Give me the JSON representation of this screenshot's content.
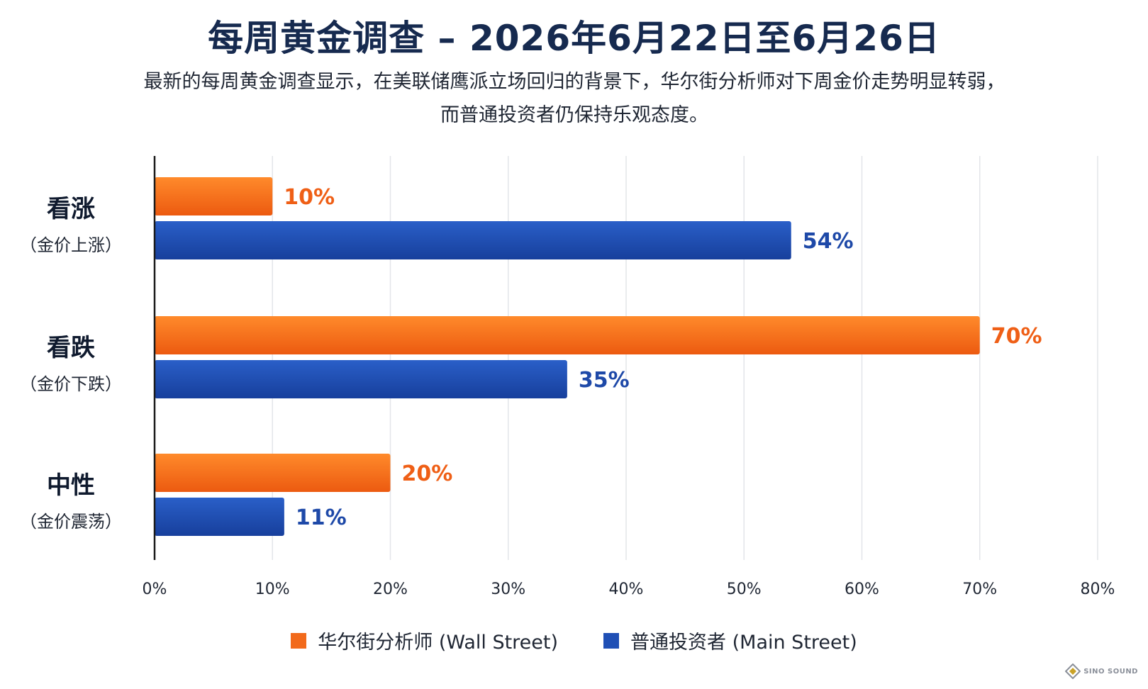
{
  "title": "每周黄金调查 – 2026年6月22日至6月26日",
  "subtitle_line1": "最新的每周黄金调查显示，在美联储鹰派立场回归的背景下，华尔街分析师对下周金价走势明显转弱，",
  "subtitle_line2": "而普通投资者仍保持乐观态度。",
  "colors": {
    "wall_street": "#f26a1b",
    "main_street": "#1f4fb5",
    "wall_street_label": "#ef5f16",
    "main_street_label": "#1e49a8"
  },
  "chart_data": {
    "type": "bar",
    "orientation": "horizontal",
    "categories": [
      {
        "label": "看涨",
        "sub": "（金价上涨）"
      },
      {
        "label": "看跌",
        "sub": "（金价下跌）"
      },
      {
        "label": "中性",
        "sub": "（金价震荡）"
      }
    ],
    "series": [
      {
        "name": "华尔街分析师 (Wall Street)",
        "values": [
          10,
          70,
          20
        ],
        "labels": [
          "10%",
          "70%",
          "20%"
        ]
      },
      {
        "name": "普通投资者 (Main Street)",
        "values": [
          54,
          35,
          11
        ],
        "labels": [
          "54%",
          "35%",
          "11%"
        ]
      }
    ],
    "xlim": [
      0,
      80
    ],
    "xticks": [
      "0%",
      "10%",
      "20%",
      "30%",
      "40%",
      "50%",
      "60%",
      "70%",
      "80%"
    ],
    "grid": "vertical",
    "legend_position": "bottom"
  },
  "legend": [
    {
      "label": "华尔街分析师 (Wall Street)",
      "color": "#f26a1b"
    },
    {
      "label": "普通投资者 (Main Street)",
      "color": "#1f4fb5"
    }
  ],
  "watermark": {
    "text": "SINO SOUND",
    "icon": "diamond-logo-icon"
  }
}
